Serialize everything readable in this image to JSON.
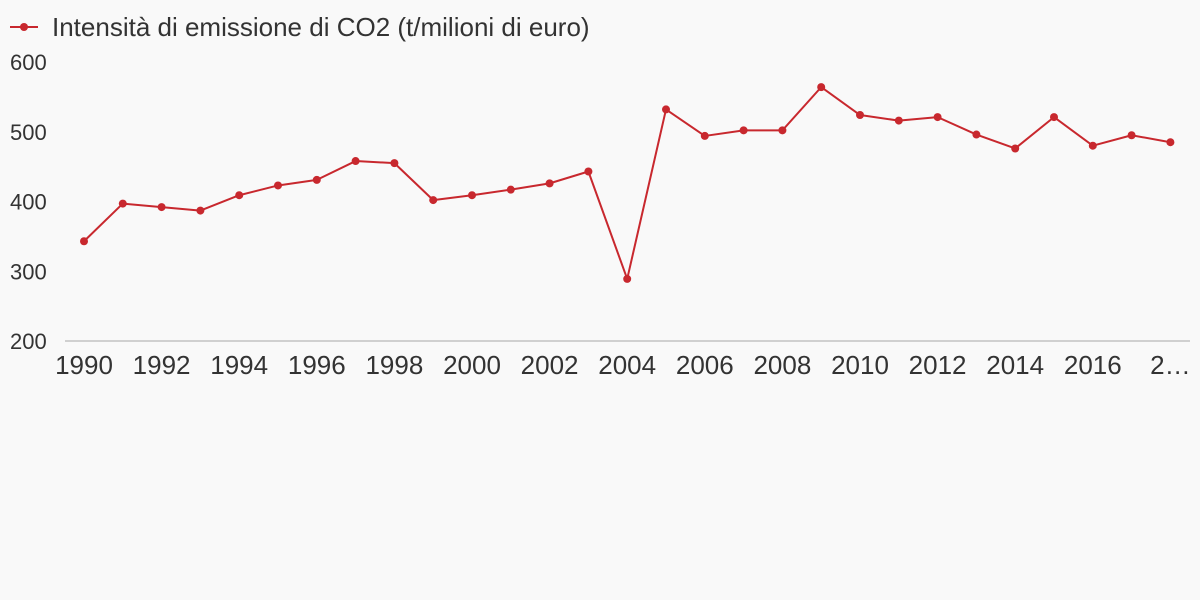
{
  "chart_data": {
    "type": "line",
    "title": "",
    "xlabel": "",
    "ylabel": "",
    "ylim": [
      200,
      600
    ],
    "y_ticks": [
      "200",
      "300",
      "400",
      "500",
      "600"
    ],
    "x_tick_labels": [
      "1990",
      "1992",
      "1994",
      "1996",
      "1998",
      "2000",
      "2002",
      "2004",
      "2006",
      "2008",
      "2010",
      "2012",
      "2014",
      "2016",
      "2…"
    ],
    "legend": {
      "position": "top-left"
    },
    "grid": false,
    "series": [
      {
        "name": "Intensità di emissione di CO2 (t/milioni di euro)",
        "color": "#c8282e",
        "x": [
          1990,
          1991,
          1992,
          1993,
          1994,
          1995,
          1996,
          1997,
          1998,
          1999,
          2000,
          2001,
          2002,
          2003,
          2004,
          2005,
          2006,
          2007,
          2008,
          2009,
          2010,
          2011,
          2012,
          2013,
          2014,
          2015,
          2016,
          2017,
          2018
        ],
        "values": [
          343,
          397,
          392,
          387,
          409,
          423,
          431,
          458,
          455,
          402,
          409,
          417,
          426,
          443,
          289,
          532,
          494,
          502,
          502,
          564,
          524,
          516,
          521,
          496,
          476,
          521,
          480,
          495,
          485
        ]
      }
    ]
  }
}
